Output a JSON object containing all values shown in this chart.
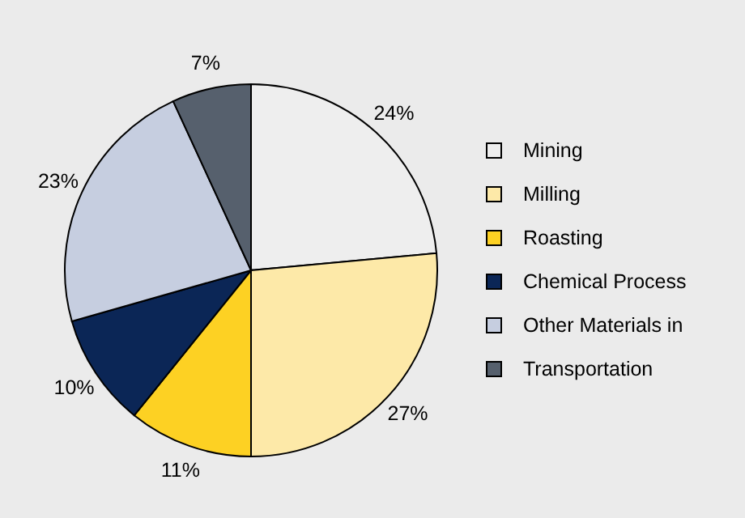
{
  "chart_data": {
    "type": "pie",
    "categories": [
      "Mining",
      "Milling",
      "Roasting",
      "Chemical Process",
      "Other Materials in",
      "Transportation"
    ],
    "values": [
      24,
      27,
      11,
      10,
      23,
      7
    ],
    "colors": [
      "#eeeeee",
      "#fde9a8",
      "#fdd123",
      "#0b2656",
      "#c6cee0",
      "#56606d"
    ],
    "value_labels": [
      "24%",
      "27%",
      "11%",
      "10%",
      "23%",
      "7%"
    ],
    "legend": "right"
  }
}
